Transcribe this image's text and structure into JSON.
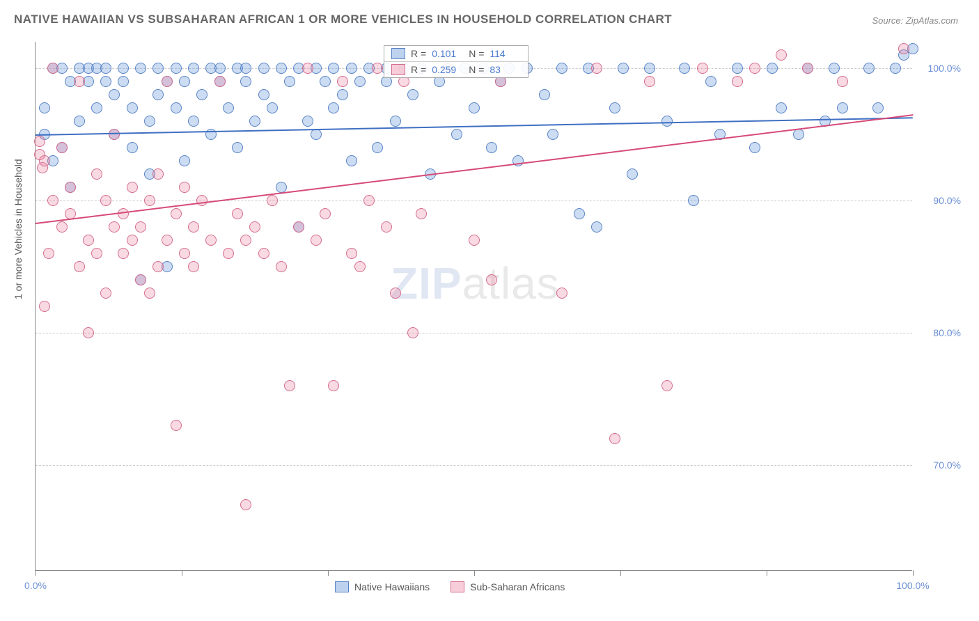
{
  "title": "NATIVE HAWAIIAN VS SUBSAHARAN AFRICAN 1 OR MORE VEHICLES IN HOUSEHOLD CORRELATION CHART",
  "source": "Source: ZipAtlas.com",
  "watermark_a": "ZIP",
  "watermark_b": "atlas",
  "y_axis_label": "1 or more Vehicles in Household",
  "chart": {
    "type": "scatter",
    "background_color": "#ffffff",
    "grid_color": "#cccccc",
    "xlim": [
      0,
      100
    ],
    "ylim": [
      62,
      102
    ],
    "y_ticks": [
      70,
      80,
      90,
      100
    ],
    "y_tick_labels": [
      "70.0%",
      "80.0%",
      "90.0%",
      "100.0%"
    ],
    "x_ticks": [
      0,
      16.67,
      33.33,
      50,
      66.67,
      83.33,
      100
    ],
    "x_tick_labels_shown": {
      "0": "0.0%",
      "100": "100.0%"
    },
    "tick_label_color": "#6b8fd4",
    "tick_label_fontsize": 14,
    "series": [
      {
        "name": "Native Hawaiians",
        "marker_fill": "rgba(108,155,220,0.35)",
        "marker_stroke": "#5a84c4",
        "marker_radius": 8,
        "trend_color": "#3f6fc2",
        "trend_y_at_x0": 95.0,
        "trend_y_at_x100": 96.3,
        "R": "0.101",
        "N": "114",
        "points": [
          [
            1,
            95
          ],
          [
            1,
            97
          ],
          [
            2,
            100
          ],
          [
            2,
            93
          ],
          [
            3,
            94
          ],
          [
            3,
            100
          ],
          [
            4,
            99
          ],
          [
            4,
            91
          ],
          [
            5,
            96
          ],
          [
            5,
            100
          ],
          [
            6,
            100
          ],
          [
            6,
            99
          ],
          [
            7,
            100
          ],
          [
            7,
            97
          ],
          [
            8,
            99
          ],
          [
            8,
            100
          ],
          [
            9,
            98
          ],
          [
            9,
            95
          ],
          [
            10,
            100
          ],
          [
            10,
            99
          ],
          [
            11,
            97
          ],
          [
            11,
            94
          ],
          [
            12,
            84
          ],
          [
            12,
            100
          ],
          [
            13,
            96
          ],
          [
            13,
            92
          ],
          [
            14,
            98
          ],
          [
            14,
            100
          ],
          [
            15,
            99
          ],
          [
            15,
            85
          ],
          [
            16,
            97
          ],
          [
            16,
            100
          ],
          [
            17,
            93
          ],
          [
            17,
            99
          ],
          [
            18,
            100
          ],
          [
            18,
            96
          ],
          [
            19,
            98
          ],
          [
            20,
            100
          ],
          [
            20,
            95
          ],
          [
            21,
            99
          ],
          [
            21,
            100
          ],
          [
            22,
            97
          ],
          [
            23,
            100
          ],
          [
            23,
            94
          ],
          [
            24,
            99
          ],
          [
            24,
            100
          ],
          [
            25,
            96
          ],
          [
            26,
            100
          ],
          [
            26,
            98
          ],
          [
            27,
            97
          ],
          [
            28,
            100
          ],
          [
            28,
            91
          ],
          [
            29,
            99
          ],
          [
            30,
            100
          ],
          [
            30,
            88
          ],
          [
            31,
            96
          ],
          [
            32,
            100
          ],
          [
            32,
            95
          ],
          [
            33,
            99
          ],
          [
            34,
            100
          ],
          [
            34,
            97
          ],
          [
            35,
            98
          ],
          [
            36,
            100
          ],
          [
            36,
            93
          ],
          [
            37,
            99
          ],
          [
            38,
            100
          ],
          [
            39,
            94
          ],
          [
            40,
            99
          ],
          [
            40,
            100
          ],
          [
            41,
            96
          ],
          [
            42,
            100
          ],
          [
            43,
            98
          ],
          [
            44,
            100
          ],
          [
            45,
            92
          ],
          [
            46,
            99
          ],
          [
            47,
            100
          ],
          [
            48,
            95
          ],
          [
            49,
            100
          ],
          [
            50,
            97
          ],
          [
            51,
            100
          ],
          [
            52,
            94
          ],
          [
            53,
            99
          ],
          [
            54,
            100
          ],
          [
            55,
            93
          ],
          [
            56,
            100
          ],
          [
            58,
            98
          ],
          [
            59,
            95
          ],
          [
            60,
            100
          ],
          [
            62,
            89
          ],
          [
            63,
            100
          ],
          [
            64,
            88
          ],
          [
            66,
            97
          ],
          [
            67,
            100
          ],
          [
            68,
            92
          ],
          [
            70,
            100
          ],
          [
            72,
            96
          ],
          [
            74,
            100
          ],
          [
            75,
            90
          ],
          [
            77,
            99
          ],
          [
            78,
            95
          ],
          [
            80,
            100
          ],
          [
            82,
            94
          ],
          [
            84,
            100
          ],
          [
            85,
            97
          ],
          [
            87,
            95
          ],
          [
            88,
            100
          ],
          [
            90,
            96
          ],
          [
            91,
            100
          ],
          [
            92,
            97
          ],
          [
            95,
            100
          ],
          [
            96,
            97
          ],
          [
            98,
            100
          ],
          [
            99,
            101
          ],
          [
            100,
            101.5
          ]
        ]
      },
      {
        "name": "Sub-Saharan Africans",
        "marker_fill": "rgba(235,130,160,0.30)",
        "marker_stroke": "#d46e8f",
        "marker_radius": 8,
        "trend_color": "#d64a77",
        "trend_y_at_x0": 88.3,
        "trend_y_at_x100": 96.5,
        "R": "0.259",
        "N": "83",
        "points": [
          [
            0.5,
            94.5
          ],
          [
            0.5,
            93.5
          ],
          [
            0.8,
            92.5
          ],
          [
            1,
            93
          ],
          [
            1,
            82
          ],
          [
            1.5,
            86
          ],
          [
            2,
            100
          ],
          [
            2,
            90
          ],
          [
            3,
            88
          ],
          [
            3,
            94
          ],
          [
            4,
            89
          ],
          [
            4,
            91
          ],
          [
            5,
            85
          ],
          [
            5,
            99
          ],
          [
            6,
            87
          ],
          [
            6,
            80
          ],
          [
            7,
            92
          ],
          [
            7,
            86
          ],
          [
            8,
            90
          ],
          [
            8,
            83
          ],
          [
            9,
            95
          ],
          [
            9,
            88
          ],
          [
            10,
            89
          ],
          [
            10,
            86
          ],
          [
            11,
            87
          ],
          [
            11,
            91
          ],
          [
            12,
            84
          ],
          [
            12,
            88
          ],
          [
            13,
            83
          ],
          [
            13,
            90
          ],
          [
            14,
            85
          ],
          [
            14,
            92
          ],
          [
            15,
            99
          ],
          [
            15,
            87
          ],
          [
            16,
            89
          ],
          [
            16,
            73
          ],
          [
            17,
            86
          ],
          [
            17,
            91
          ],
          [
            18,
            88
          ],
          [
            18,
            85
          ],
          [
            19,
            90
          ],
          [
            20,
            87
          ],
          [
            21,
            99
          ],
          [
            22,
            86
          ],
          [
            23,
            89
          ],
          [
            24,
            67
          ],
          [
            24,
            87
          ],
          [
            25,
            88
          ],
          [
            26,
            86
          ],
          [
            27,
            90
          ],
          [
            28,
            85
          ],
          [
            29,
            76
          ],
          [
            30,
            88
          ],
          [
            31,
            100
          ],
          [
            32,
            87
          ],
          [
            33,
            89
          ],
          [
            34,
            76
          ],
          [
            35,
            99
          ],
          [
            36,
            86
          ],
          [
            37,
            85
          ],
          [
            38,
            90
          ],
          [
            39,
            100
          ],
          [
            40,
            88
          ],
          [
            41,
            83
          ],
          [
            42,
            99
          ],
          [
            43,
            80
          ],
          [
            44,
            89
          ],
          [
            47,
            100
          ],
          [
            50,
            87
          ],
          [
            52,
            84
          ],
          [
            53,
            99
          ],
          [
            60,
            83
          ],
          [
            64,
            100
          ],
          [
            66,
            72
          ],
          [
            70,
            99
          ],
          [
            72,
            76
          ],
          [
            76,
            100
          ],
          [
            80,
            99
          ],
          [
            82,
            100
          ],
          [
            85,
            101
          ],
          [
            88,
            100
          ],
          [
            92,
            99
          ],
          [
            99,
            101.5
          ]
        ]
      }
    ]
  },
  "bottom_legend": [
    {
      "label": "Native Hawaiians",
      "fill": "rgba(108,155,220,0.45)",
      "stroke": "#5a84c4"
    },
    {
      "label": "Sub-Saharan Africans",
      "fill": "rgba(235,130,160,0.40)",
      "stroke": "#d46e8f"
    }
  ],
  "stats_box": {
    "rows": [
      {
        "swatch_fill": "rgba(108,155,220,0.45)",
        "swatch_stroke": "#5a84c4",
        "r_label": "R =",
        "r_val": "0.101",
        "n_label": "N =",
        "n_val": "114"
      },
      {
        "swatch_fill": "rgba(235,130,160,0.40)",
        "swatch_stroke": "#d46e8f",
        "r_label": "R =",
        "r_val": "0.259",
        "n_label": "N =",
        "n_val": " 83"
      }
    ]
  }
}
